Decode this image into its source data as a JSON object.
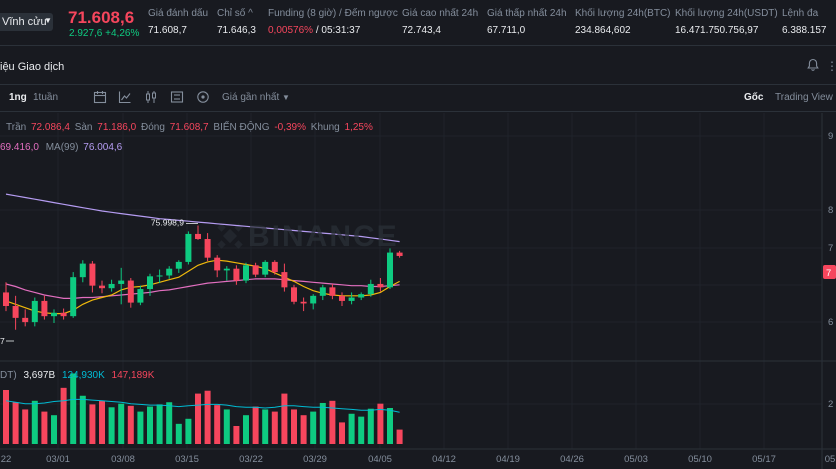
{
  "ticker": {
    "contract_label": "Vĩnh cửu",
    "last_price": "71.608,6",
    "change": "2.927,6 +4,26%",
    "stats": [
      {
        "label": "Giá đánh dấu",
        "value": "71.608,7"
      },
      {
        "label": "Chỉ số ^",
        "value": "71.646,3"
      },
      {
        "label": "Funding (8 giờ) / Đếm ngược",
        "value_neg": "0,00576%",
        "value_rest": " / 05:31:37"
      },
      {
        "label": "Giá cao nhất 24h",
        "value": "72.743,4"
      },
      {
        "label": "Giá thấp nhất 24h",
        "value": "67.711,0"
      },
      {
        "label": "Khối lượng 24h(BTC)",
        "value": "234.864,602"
      },
      {
        "label": "Khối lượng 24h(USDT)",
        "value": "16.471.750.756,97"
      },
      {
        "label": "Lệnh đa",
        "value": "6.388.157"
      }
    ]
  },
  "section": {
    "title": "iệu Giao dịch"
  },
  "toolbar": {
    "interval_1d": "1ng",
    "interval_1w": "1tuần",
    "price_type": "Giá gần nhất",
    "view_original": "Gốc",
    "view_tradingview": "Trading View"
  },
  "info": {
    "high_label": "Trần",
    "high": "72.086,4",
    "low_label": "Sàn",
    "low": "71.186,0",
    "close_label": "Đóng",
    "close": "71.608,7",
    "change_label": "BIẾN ĐỘNG",
    "change": "-0,39%",
    "range_label": "Khung",
    "range": "1,25%"
  },
  "ma": {
    "ma25_value": "69.416,0",
    "ma99_label": "MA(99)",
    "ma99_value": "76.004,6"
  },
  "volume": {
    "prefix": "DT)",
    "v1": "3,697B",
    "v2": "124,930K",
    "v3": "147,189K"
  },
  "watermark": "BINANCE",
  "colors": {
    "up": "#0ecb81",
    "down": "#f6465d",
    "ma7": "#f0b90b",
    "ma25": "#e36fc0",
    "ma99": "#b59cf2",
    "vma": "#00bcd4"
  },
  "chart_data": {
    "type": "candlestick",
    "x_tick_labels": [
      "22",
      "03/01",
      "03/08",
      "03/15",
      "03/22",
      "03/29",
      "04/05",
      "04/12",
      "04/19",
      "04/26",
      "05/03",
      "05/10",
      "05/17",
      "05"
    ],
    "y_tick_labels": [
      "9",
      "8",
      "7",
      "6",
      "2"
    ],
    "max_label": "75.998,9",
    "min_label": "7",
    "current_price_tag": "7",
    "candles": [
      {
        "o": 65200,
        "h": 66400,
        "l": 63000,
        "c": 63600
      },
      {
        "o": 63600,
        "h": 64800,
        "l": 60800,
        "c": 62200
      },
      {
        "o": 62200,
        "h": 63200,
        "l": 61200,
        "c": 61700
      },
      {
        "o": 61700,
        "h": 64600,
        "l": 61200,
        "c": 64200
      },
      {
        "o": 64200,
        "h": 64800,
        "l": 62000,
        "c": 62400
      },
      {
        "o": 62400,
        "h": 63200,
        "l": 61600,
        "c": 62800
      },
      {
        "o": 62800,
        "h": 63300,
        "l": 62000,
        "c": 62400
      },
      {
        "o": 62400,
        "h": 67600,
        "l": 62200,
        "c": 67000
      },
      {
        "o": 67000,
        "h": 69000,
        "l": 66400,
        "c": 68600
      },
      {
        "o": 68600,
        "h": 68900,
        "l": 65200,
        "c": 66000
      },
      {
        "o": 66000,
        "h": 66600,
        "l": 65100,
        "c": 65700
      },
      {
        "o": 65700,
        "h": 66700,
        "l": 65300,
        "c": 66200
      },
      {
        "o": 66200,
        "h": 68100,
        "l": 63800,
        "c": 66600
      },
      {
        "o": 66600,
        "h": 66900,
        "l": 63400,
        "c": 64000
      },
      {
        "o": 64000,
        "h": 66000,
        "l": 63700,
        "c": 65600
      },
      {
        "o": 65600,
        "h": 67400,
        "l": 64800,
        "c": 67100
      },
      {
        "o": 67100,
        "h": 67900,
        "l": 66300,
        "c": 67200
      },
      {
        "o": 67200,
        "h": 68300,
        "l": 66800,
        "c": 68000
      },
      {
        "o": 68000,
        "h": 69000,
        "l": 67500,
        "c": 68800
      },
      {
        "o": 68800,
        "h": 72400,
        "l": 68500,
        "c": 72100
      },
      {
        "o": 72100,
        "h": 73100,
        "l": 71400,
        "c": 71500
      },
      {
        "o": 71500,
        "h": 72200,
        "l": 68900,
        "c": 69300
      },
      {
        "o": 69300,
        "h": 69600,
        "l": 67000,
        "c": 67800
      },
      {
        "o": 67800,
        "h": 68300,
        "l": 66600,
        "c": 68000
      },
      {
        "o": 68000,
        "h": 68400,
        "l": 66100,
        "c": 66600
      },
      {
        "o": 66600,
        "h": 68700,
        "l": 66300,
        "c": 68400
      },
      {
        "o": 68400,
        "h": 68700,
        "l": 67000,
        "c": 67300
      },
      {
        "o": 67300,
        "h": 69000,
        "l": 67000,
        "c": 68800
      },
      {
        "o": 68800,
        "h": 69000,
        "l": 67300,
        "c": 67600
      },
      {
        "o": 67600,
        "h": 68600,
        "l": 65300,
        "c": 65800
      },
      {
        "o": 65800,
        "h": 66100,
        "l": 63800,
        "c": 64100
      },
      {
        "o": 64100,
        "h": 64600,
        "l": 63000,
        "c": 63900
      },
      {
        "o": 63900,
        "h": 65000,
        "l": 63200,
        "c": 64800
      },
      {
        "o": 64800,
        "h": 66100,
        "l": 64300,
        "c": 65800
      },
      {
        "o": 65800,
        "h": 66200,
        "l": 64400,
        "c": 64800
      },
      {
        "o": 64800,
        "h": 65200,
        "l": 63600,
        "c": 64200
      },
      {
        "o": 64200,
        "h": 65200,
        "l": 63800,
        "c": 64600
      },
      {
        "o": 64600,
        "h": 65200,
        "l": 64300,
        "c": 65000
      },
      {
        "o": 65000,
        "h": 66700,
        "l": 64700,
        "c": 66200
      },
      {
        "o": 66200,
        "h": 66900,
        "l": 65300,
        "c": 65800
      },
      {
        "o": 65800,
        "h": 70400,
        "l": 65600,
        "c": 69900
      },
      {
        "o": 69900,
        "h": 70100,
        "l": 69300,
        "c": 69500
      }
    ],
    "volume": [
      75,
      58,
      48,
      60,
      45,
      40,
      78,
      98,
      67,
      55,
      60,
      51,
      56,
      53,
      45,
      52,
      55,
      58,
      28,
      35,
      70,
      74,
      54,
      48,
      25,
      40,
      52,
      48,
      45,
      70,
      48,
      40,
      45,
      57,
      60,
      30,
      42,
      38,
      49,
      56,
      50,
      20
    ],
    "ma7_series": [
      64200,
      63800,
      63400,
      63000,
      62800,
      62700,
      62700,
      63100,
      63800,
      64300,
      64600,
      64900,
      65500,
      65800,
      65900,
      66100,
      66400,
      66700,
      67000,
      67700,
      68400,
      68800,
      69000,
      68900,
      68700,
      68500,
      68300,
      68000,
      67500,
      67000,
      66500,
      65900,
      65400,
      65100,
      64900,
      64800,
      64800,
      64800,
      64900,
      65200,
      65900,
      66500
    ],
    "ma25_series": [
      66200,
      65900,
      65500,
      65200,
      64900,
      64700,
      64500,
      64500,
      64600,
      64600,
      64700,
      64800,
      64900,
      65000,
      65100,
      65200,
      65400,
      65500,
      65700,
      65900,
      66100,
      66300,
      66400,
      66500,
      66600,
      66700,
      66800,
      66800,
      66800,
      66700,
      66600,
      66500,
      66400,
      66300,
      66200,
      66100,
      66000,
      66000,
      65900,
      65900,
      66000,
      66100
    ],
    "ma99_series": [
      76800,
      76600,
      76400,
      76200,
      76000,
      75800,
      75600,
      75400,
      75200,
      75000,
      74800,
      74650,
      74500,
      74350,
      74200,
      74050,
      73900,
      73800,
      73700,
      73600,
      73500,
      73400,
      73300,
      73200,
      73100,
      73000,
      72900,
      72800,
      72700,
      72600,
      72500,
      72400,
      72300,
      72200,
      72100,
      72000,
      71900,
      71800,
      71650,
      71500,
      71350,
      71200
    ],
    "vma_series": [
      60,
      58,
      56,
      56,
      57,
      59,
      60,
      62,
      62,
      61,
      60,
      59,
      58,
      56,
      55,
      54,
      54,
      53,
      52,
      53,
      54,
      55,
      55,
      54,
      52,
      51,
      51,
      50,
      51,
      53,
      53,
      52,
      51,
      51,
      50,
      49,
      48,
      47,
      47,
      48,
      47,
      44
    ],
    "ylim": [
      59000,
      82000
    ],
    "volume_max": 100
  }
}
